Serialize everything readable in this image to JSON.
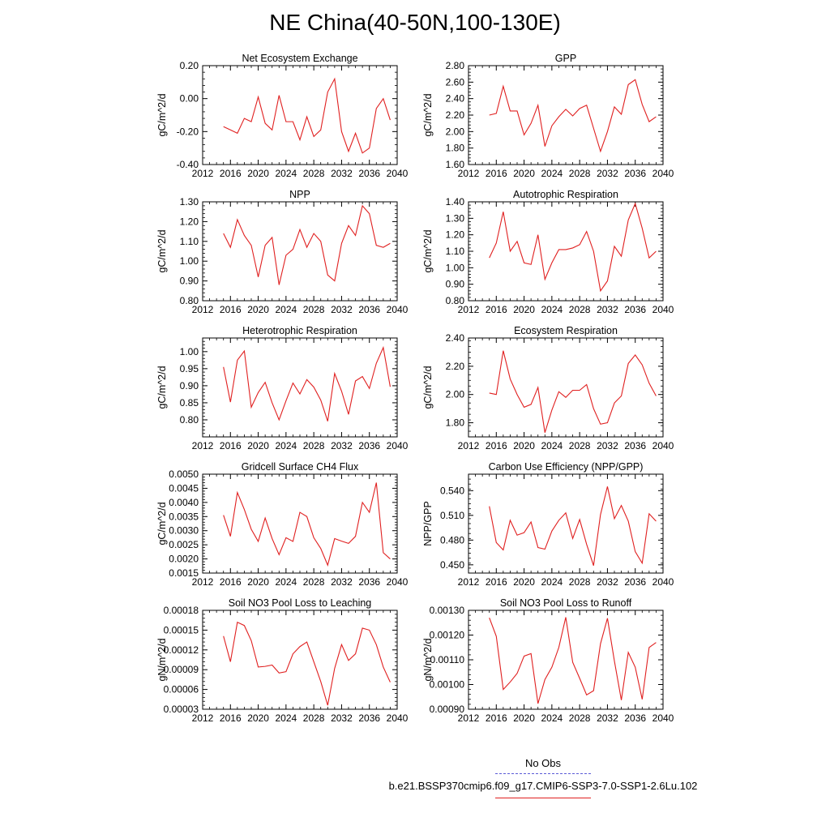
{
  "title": "NE China(40-50N,100-130E)",
  "legend": {
    "entries": [
      {
        "label": "No Obs",
        "color": "#5b5bd6",
        "style": "dashed"
      },
      {
        "label": "b.e21.BSSP370cmip6.f09_g17.CMIP6-SSP3-7.0-SSP1-2.6Lu.102",
        "color": "#e02020",
        "style": "solid"
      }
    ]
  },
  "chart_data": [
    {
      "type": "line",
      "title": "Net Ecosystem Exchange",
      "ylabel": "gC/m^2/d",
      "xlim": [
        2012,
        2040
      ],
      "xticks": [
        "2012",
        "2016",
        "2020",
        "2024",
        "2028",
        "2032",
        "2036",
        "2040"
      ],
      "ylim": [
        -0.4,
        0.2
      ],
      "yticks": [
        "-0.40",
        "-0.20",
        "0.00",
        "0.20"
      ],
      "x": [
        2015,
        2016,
        2017,
        2018,
        2019,
        2020,
        2021,
        2022,
        2023,
        2024,
        2025,
        2026,
        2027,
        2028,
        2029,
        2030,
        2031,
        2032,
        2033,
        2034,
        2035,
        2036,
        2037,
        2038,
        2039
      ],
      "series": [
        {
          "values": [
            -0.17,
            -0.19,
            -0.21,
            -0.12,
            -0.14,
            0.01,
            -0.15,
            -0.19,
            0.02,
            -0.14,
            -0.14,
            -0.25,
            -0.11,
            -0.23,
            -0.19,
            0.04,
            0.12,
            -0.2,
            -0.32,
            -0.21,
            -0.33,
            -0.3,
            -0.06,
            0.0,
            -0.13
          ],
          "color": "#e02020"
        }
      ]
    },
    {
      "type": "line",
      "title": "GPP",
      "ylabel": "gC/m^2/d",
      "xlim": [
        2012,
        2040
      ],
      "xticks": [
        "2012",
        "2016",
        "2020",
        "2024",
        "2028",
        "2032",
        "2036",
        "2040"
      ],
      "ylim": [
        1.6,
        2.8
      ],
      "yticks": [
        "1.60",
        "1.80",
        "2.00",
        "2.20",
        "2.40",
        "2.60",
        "2.80"
      ],
      "x": [
        2015,
        2016,
        2017,
        2018,
        2019,
        2020,
        2021,
        2022,
        2023,
        2024,
        2025,
        2026,
        2027,
        2028,
        2029,
        2030,
        2031,
        2032,
        2033,
        2034,
        2035,
        2036,
        2037,
        2038,
        2039
      ],
      "series": [
        {
          "values": [
            2.2,
            2.22,
            2.55,
            2.25,
            2.25,
            1.96,
            2.1,
            2.32,
            1.82,
            2.07,
            2.18,
            2.27,
            2.19,
            2.28,
            2.32,
            2.04,
            1.76,
            2.0,
            2.3,
            2.21,
            2.57,
            2.63,
            2.33,
            2.12,
            2.18
          ],
          "color": "#e02020"
        }
      ]
    },
    {
      "type": "line",
      "title": "NPP",
      "ylabel": "gC/m^2/d",
      "xlim": [
        2012,
        2040
      ],
      "xticks": [
        "2012",
        "2016",
        "2020",
        "2024",
        "2028",
        "2032",
        "2036",
        "2040"
      ],
      "ylim": [
        0.8,
        1.3
      ],
      "yticks": [
        "0.80",
        "0.90",
        "1.00",
        "1.10",
        "1.20",
        "1.30"
      ],
      "x": [
        2015,
        2016,
        2017,
        2018,
        2019,
        2020,
        2021,
        2022,
        2023,
        2024,
        2025,
        2026,
        2027,
        2028,
        2029,
        2030,
        2031,
        2032,
        2033,
        2034,
        2035,
        2036,
        2037,
        2038,
        2039
      ],
      "series": [
        {
          "values": [
            1.14,
            1.07,
            1.21,
            1.13,
            1.08,
            0.92,
            1.08,
            1.12,
            0.88,
            1.03,
            1.06,
            1.16,
            1.07,
            1.14,
            1.1,
            0.93,
            0.9,
            1.09,
            1.18,
            1.13,
            1.28,
            1.24,
            1.08,
            1.07,
            1.09
          ],
          "color": "#e02020"
        }
      ]
    },
    {
      "type": "line",
      "title": "Autotrophic Respiration",
      "ylabel": "gC/m^2/d",
      "xlim": [
        2012,
        2040
      ],
      "xticks": [
        "2012",
        "2016",
        "2020",
        "2024",
        "2028",
        "2032",
        "2036",
        "2040"
      ],
      "ylim": [
        0.8,
        1.4
      ],
      "yticks": [
        "0.80",
        "0.90",
        "1.00",
        "1.10",
        "1.20",
        "1.30",
        "1.40"
      ],
      "x": [
        2015,
        2016,
        2017,
        2018,
        2019,
        2020,
        2021,
        2022,
        2023,
        2024,
        2025,
        2026,
        2027,
        2028,
        2029,
        2030,
        2031,
        2032,
        2033,
        2034,
        2035,
        2036,
        2037,
        2038,
        2039
      ],
      "series": [
        {
          "values": [
            1.06,
            1.15,
            1.34,
            1.1,
            1.16,
            1.03,
            1.02,
            1.2,
            0.93,
            1.03,
            1.11,
            1.11,
            1.12,
            1.14,
            1.22,
            1.1,
            0.86,
            0.92,
            1.13,
            1.07,
            1.29,
            1.39,
            1.24,
            1.06,
            1.1
          ],
          "color": "#e02020"
        }
      ]
    },
    {
      "type": "line",
      "title": "Heterotrophic Respiration",
      "ylabel": "gC/m^2/d",
      "xlim": [
        2012,
        2040
      ],
      "xticks": [
        "2012",
        "2016",
        "2020",
        "2024",
        "2028",
        "2032",
        "2036",
        "2040"
      ],
      "ylim": [
        0.75,
        1.04
      ],
      "yticks": [
        "0.80",
        "0.85",
        "0.90",
        "0.95",
        "1.00"
      ],
      "x": [
        2015,
        2016,
        2017,
        2018,
        2019,
        2020,
        2021,
        2022,
        2023,
        2024,
        2025,
        2026,
        2027,
        2028,
        2029,
        2030,
        2031,
        2032,
        2033,
        2034,
        2035,
        2036,
        2037,
        2038,
        2039
      ],
      "series": [
        {
          "values": [
            0.955,
            0.852,
            0.975,
            1.002,
            0.837,
            0.88,
            0.91,
            0.85,
            0.8,
            0.856,
            0.908,
            0.876,
            0.918,
            0.896,
            0.858,
            0.796,
            0.936,
            0.884,
            0.816,
            0.914,
            0.927,
            0.892,
            0.966,
            1.012,
            0.897
          ],
          "color": "#e02020"
        }
      ]
    },
    {
      "type": "line",
      "title": "Ecosystem Respiration",
      "ylabel": "gC/m^2/d",
      "xlim": [
        2012,
        2040
      ],
      "xticks": [
        "2012",
        "2016",
        "2020",
        "2024",
        "2028",
        "2032",
        "2036",
        "2040"
      ],
      "ylim": [
        1.7,
        2.4
      ],
      "yticks": [
        "1.80",
        "2.00",
        "2.20",
        "2.40"
      ],
      "x": [
        2015,
        2016,
        2017,
        2018,
        2019,
        2020,
        2021,
        2022,
        2023,
        2024,
        2025,
        2026,
        2027,
        2028,
        2029,
        2030,
        2031,
        2032,
        2033,
        2034,
        2035,
        2036,
        2037,
        2038,
        2039
      ],
      "series": [
        {
          "values": [
            2.01,
            2.0,
            2.31,
            2.11,
            2.0,
            1.91,
            1.93,
            2.05,
            1.73,
            1.89,
            2.02,
            1.98,
            2.03,
            2.03,
            2.07,
            1.9,
            1.79,
            1.8,
            1.94,
            1.99,
            2.22,
            2.28,
            2.21,
            2.08,
            1.99
          ],
          "color": "#e02020"
        }
      ]
    },
    {
      "type": "line",
      "title": "Gridcell Surface CH4 Flux",
      "ylabel": "gC/m^2/d",
      "xlim": [
        2012,
        2040
      ],
      "xticks": [
        "2012",
        "2016",
        "2020",
        "2024",
        "2028",
        "2032",
        "2036",
        "2040"
      ],
      "ylim": [
        0.0015,
        0.005
      ],
      "yticks": [
        "0.0015",
        "0.0020",
        "0.0025",
        "0.0030",
        "0.0035",
        "0.0040",
        "0.0045",
        "0.0050"
      ],
      "x": [
        2015,
        2016,
        2017,
        2018,
        2019,
        2020,
        2021,
        2022,
        2023,
        2024,
        2025,
        2026,
        2027,
        2028,
        2029,
        2030,
        2031,
        2032,
        2033,
        2034,
        2035,
        2036,
        2037,
        2038,
        2039
      ],
      "series": [
        {
          "values": [
            0.00355,
            0.0028,
            0.00435,
            0.00375,
            0.00305,
            0.00262,
            0.00345,
            0.00272,
            0.00215,
            0.00275,
            0.00262,
            0.00365,
            0.0035,
            0.00275,
            0.00237,
            0.00178,
            0.00272,
            0.00263,
            0.00255,
            0.0028,
            0.004,
            0.00365,
            0.0047,
            0.00222,
            0.002
          ],
          "color": "#e02020"
        }
      ]
    },
    {
      "type": "line",
      "title": "Carbon Use Efficiency (NPP/GPP)",
      "ylabel": "NPP/GPP",
      "xlim": [
        2012,
        2040
      ],
      "xticks": [
        "2012",
        "2016",
        "2020",
        "2024",
        "2028",
        "2032",
        "2036",
        "2040"
      ],
      "ylim": [
        0.44,
        0.56
      ],
      "yticks": [
        "0.450",
        "0.480",
        "0.510",
        "0.540"
      ],
      "x": [
        2015,
        2016,
        2017,
        2018,
        2019,
        2020,
        2021,
        2022,
        2023,
        2024,
        2025,
        2026,
        2027,
        2028,
        2029,
        2030,
        2031,
        2032,
        2033,
        2034,
        2035,
        2036,
        2037,
        2038,
        2039
      ],
      "series": [
        {
          "values": [
            0.521,
            0.477,
            0.468,
            0.504,
            0.486,
            0.489,
            0.502,
            0.471,
            0.469,
            0.491,
            0.504,
            0.513,
            0.482,
            0.505,
            0.475,
            0.449,
            0.511,
            0.545,
            0.506,
            0.522,
            0.503,
            0.466,
            0.452,
            0.512,
            0.503
          ],
          "color": "#e02020"
        }
      ]
    },
    {
      "type": "line",
      "title": "Soil NO3 Pool Loss to Leaching",
      "ylabel": "gN/m^2/d",
      "xlim": [
        2012,
        2040
      ],
      "xticks": [
        "2012",
        "2016",
        "2020",
        "2024",
        "2028",
        "2032",
        "2036",
        "2040"
      ],
      "ylim": [
        3e-05,
        0.00018
      ],
      "yticks": [
        "0.00003",
        "0.00006",
        "0.00009",
        "0.00012",
        "0.00015",
        "0.00018"
      ],
      "x": [
        2015,
        2016,
        2017,
        2018,
        2019,
        2020,
        2021,
        2022,
        2023,
        2024,
        2025,
        2026,
        2027,
        2028,
        2029,
        2030,
        2031,
        2032,
        2033,
        2034,
        2035,
        2036,
        2037,
        2038,
        2039
      ],
      "series": [
        {
          "values": [
            0.000141,
            0.000102,
            0.000162,
            0.000157,
            0.000134,
            9.4e-05,
            9.5e-05,
            9.7e-05,
            8.5e-05,
            8.7e-05,
            0.000114,
            0.000125,
            0.000132,
            0.000102,
            7.2e-05,
            3.6e-05,
            9.2e-05,
            0.000128,
            0.000104,
            0.000114,
            0.000153,
            0.00015,
            0.000128,
            9.4e-05,
            7.1e-05
          ],
          "color": "#e02020"
        }
      ]
    },
    {
      "type": "line",
      "title": "Soil NO3 Pool Loss to Runoff",
      "ylabel": "gN/m^2/d",
      "xlim": [
        2012,
        2040
      ],
      "xticks": [
        "2012",
        "2016",
        "2020",
        "2024",
        "2028",
        "2032",
        "2036",
        "2040"
      ],
      "ylim": [
        0.0009,
        0.0013
      ],
      "yticks": [
        "0.00090",
        "0.00100",
        "0.00110",
        "0.00120",
        "0.00130"
      ],
      "x": [
        2015,
        2016,
        2017,
        2018,
        2019,
        2020,
        2021,
        2022,
        2023,
        2024,
        2025,
        2026,
        2027,
        2028,
        2029,
        2030,
        2031,
        2032,
        2033,
        2034,
        2035,
        2036,
        2037,
        2038,
        2039
      ],
      "series": [
        {
          "values": [
            0.00127,
            0.001195,
            0.00098,
            0.00101,
            0.001045,
            0.001115,
            0.001125,
            0.000923,
            0.00102,
            0.00107,
            0.00115,
            0.001272,
            0.00109,
            0.001025,
            0.000958,
            0.000975,
            0.001165,
            0.001268,
            0.001095,
            0.000937,
            0.00113,
            0.00107,
            0.00094,
            0.00115,
            0.00117
          ],
          "color": "#e02020"
        }
      ]
    }
  ]
}
